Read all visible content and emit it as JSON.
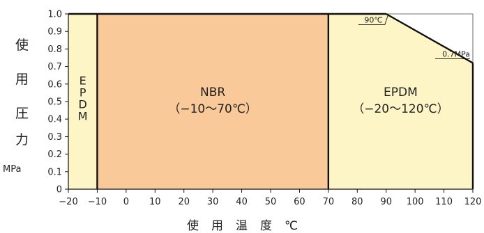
{
  "chart_data": {
    "type": "area",
    "title": "",
    "ylabel_chars": [
      "使",
      "用",
      "圧",
      "力"
    ],
    "ylabel_unit": "MPa",
    "xlabel": "使用温度℃",
    "xlim": [
      -20,
      120
    ],
    "ylim": [
      0,
      1.0
    ],
    "x_ticks": [
      "−20",
      "−10",
      "0",
      "10",
      "20",
      "30",
      "40",
      "50",
      "60",
      "70",
      "80",
      "90",
      "100",
      "110",
      "120"
    ],
    "x_tick_values": [
      -20,
      -10,
      0,
      10,
      20,
      30,
      40,
      50,
      60,
      70,
      80,
      90,
      100,
      110,
      120
    ],
    "y_ticks": [
      "0",
      "0.1",
      "0.2",
      "0.3",
      "0.4",
      "0.5",
      "0.6",
      "0.7",
      "0.8",
      "0.9",
      "1.0"
    ],
    "y_tick_values": [
      0,
      0.1,
      0.2,
      0.3,
      0.4,
      0.5,
      0.6,
      0.7,
      0.8,
      0.9,
      1.0
    ],
    "regions": [
      {
        "name": "EPDM",
        "label_lines": [
          "E",
          "P",
          "D",
          "M"
        ],
        "label_vertical": true,
        "color": "#fdf5c6",
        "polygon": [
          [
            -20,
            0
          ],
          [
            -10,
            0
          ],
          [
            -10,
            1.0
          ],
          [
            -20,
            1.0
          ]
        ],
        "label_at": [
          -15,
          0.52
        ]
      },
      {
        "name": "NBR",
        "label_lines": [
          "NBR",
          "（−10〜70℃）"
        ],
        "label_vertical": false,
        "color": "#f9c99a",
        "polygon": [
          [
            -10,
            0
          ],
          [
            70,
            0
          ],
          [
            70,
            1.0
          ],
          [
            -10,
            1.0
          ]
        ],
        "label_at": [
          30,
          0.5
        ]
      },
      {
        "name": "EPDM",
        "label_lines": [
          "EPDM",
          "（−20〜120℃）"
        ],
        "label_vertical": false,
        "color": "#fdf5c6",
        "polygon": [
          [
            70,
            0
          ],
          [
            120,
            0
          ],
          [
            120,
            0.72
          ],
          [
            90,
            1.0
          ],
          [
            70,
            1.0
          ]
        ],
        "label_at": [
          95,
          0.5
        ]
      }
    ],
    "annotations": [
      {
        "text": "90℃",
        "at": [
          90,
          0.95
        ],
        "anchor": "end"
      },
      {
        "text": "0.7MPa",
        "at": [
          120,
          0.74
        ],
        "anchor": "end"
      }
    ]
  }
}
